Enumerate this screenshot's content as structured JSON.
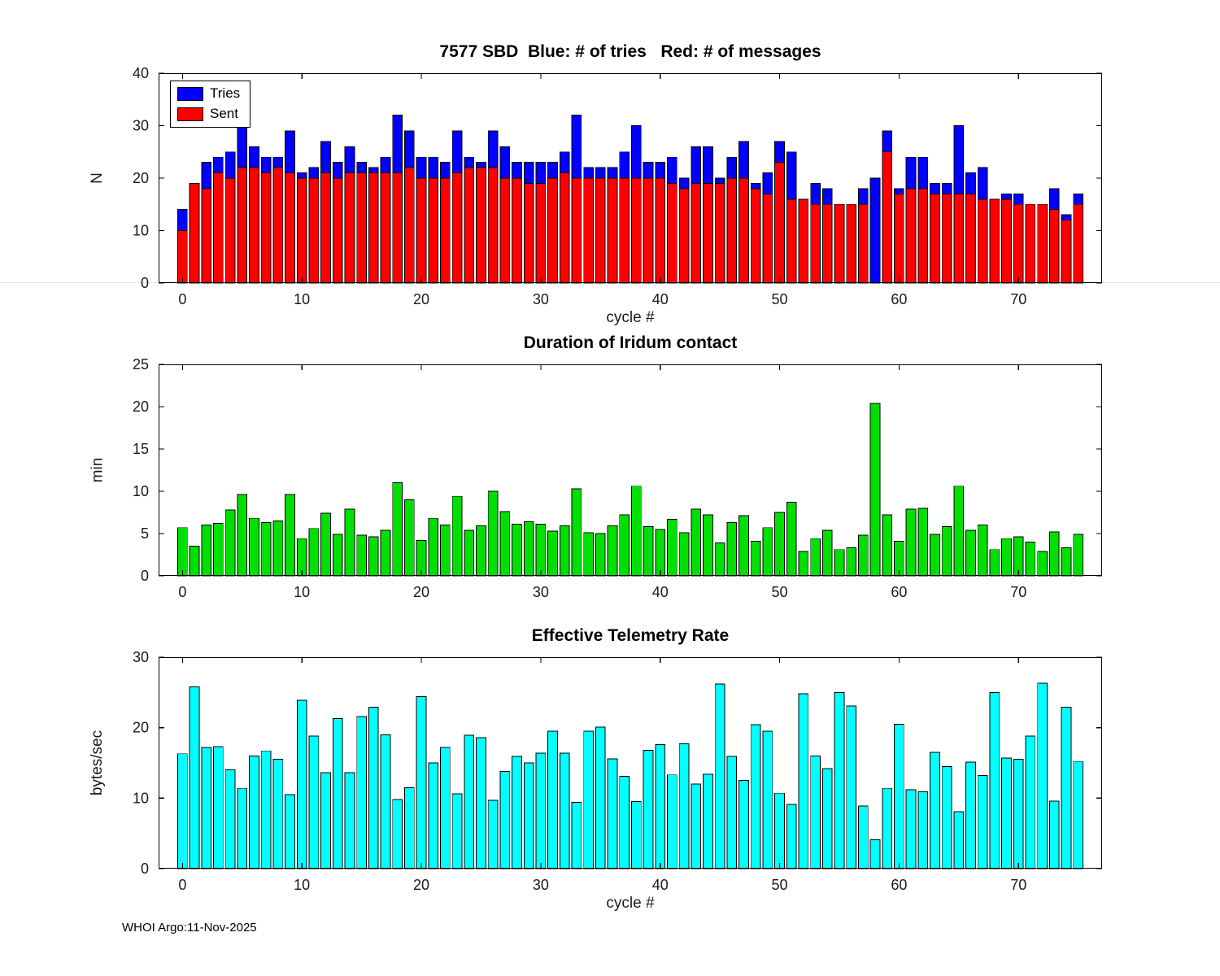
{
  "footer": "WHOI Argo:11-Nov-2025",
  "chart_data": [
    {
      "type": "bar",
      "title": "7577 SBD  Blue: # of tries   Red: # of messages",
      "xlabel": "cycle #",
      "ylabel": "N",
      "xlim": [
        -2,
        77
      ],
      "ylim": [
        0,
        40
      ],
      "xticks": [
        0,
        10,
        20,
        30,
        40,
        50,
        60,
        70
      ],
      "yticks": [
        0,
        10,
        20,
        30,
        40
      ],
      "grid": false,
      "legend_position": "top-left",
      "legend": [
        {
          "label": "Tries",
          "color": "#0000ff"
        },
        {
          "label": "Sent",
          "color": "#ff0000"
        }
      ],
      "series": [
        {
          "name": "Tries",
          "color": "#0000ff",
          "values": [
            14,
            19,
            23,
            24,
            25,
            31,
            26,
            24,
            24,
            29,
            21,
            22,
            27,
            23,
            26,
            23,
            22,
            24,
            32,
            29,
            24,
            24,
            23,
            29,
            24,
            23,
            29,
            26,
            23,
            23,
            23,
            23,
            25,
            32,
            22,
            22,
            22,
            25,
            30,
            23,
            23,
            24,
            20,
            26,
            26,
            20,
            24,
            27,
            19,
            21,
            27,
            25,
            16,
            19,
            18,
            15,
            15,
            18,
            20,
            29,
            18,
            24,
            24,
            19,
            19,
            30,
            21,
            22,
            16,
            17,
            17,
            15,
            15,
            18,
            13,
            17
          ]
        },
        {
          "name": "Sent",
          "color": "#ff0000",
          "values": [
            10,
            19,
            18,
            21,
            20,
            22,
            22,
            21,
            22,
            21,
            20,
            20,
            21,
            20,
            21,
            21,
            21,
            21,
            21,
            22,
            20,
            20,
            20,
            21,
            22,
            22,
            22,
            20,
            20,
            19,
            19,
            20,
            21,
            20,
            20,
            20,
            20,
            20,
            20,
            20,
            20,
            19,
            18,
            19,
            19,
            19,
            20,
            20,
            18,
            17,
            23,
            16,
            16,
            15,
            15,
            15,
            15,
            15,
            0,
            25,
            17,
            18,
            18,
            17,
            17,
            17,
            17,
            16,
            16,
            16,
            15,
            15,
            15,
            14,
            12,
            15
          ]
        }
      ]
    },
    {
      "type": "bar",
      "title": "Duration of Iridum contact",
      "xlabel": "",
      "ylabel": "min",
      "xlim": [
        -2,
        77
      ],
      "ylim": [
        0,
        25
      ],
      "xticks": [
        0,
        10,
        20,
        30,
        40,
        50,
        60,
        70
      ],
      "yticks": [
        0,
        5,
        10,
        15,
        20,
        25
      ],
      "grid": false,
      "series": [
        {
          "name": "Duration",
          "color": "#00e000",
          "values": [
            5.7,
            3.5,
            6.0,
            6.2,
            7.8,
            9.6,
            6.8,
            6.3,
            6.5,
            9.6,
            4.4,
            5.6,
            7.4,
            4.9,
            7.9,
            4.8,
            4.6,
            5.4,
            11.0,
            9.0,
            4.2,
            6.8,
            6.0,
            9.4,
            5.4,
            5.9,
            10.0,
            7.6,
            6.1,
            6.4,
            6.1,
            5.3,
            5.9,
            10.3,
            5.1,
            5.0,
            5.9,
            7.2,
            10.6,
            5.8,
            5.5,
            6.7,
            5.1,
            7.9,
            7.2,
            3.9,
            6.3,
            7.1,
            4.1,
            5.7,
            7.5,
            8.7,
            2.9,
            4.4,
            5.4,
            3.1,
            3.3,
            4.8,
            20.4,
            7.2,
            4.1,
            7.9,
            8.0,
            4.9,
            5.8,
            10.6,
            5.4,
            6.0,
            3.1,
            4.4,
            4.6,
            4.0,
            2.9,
            5.2,
            3.3,
            4.9
          ]
        }
      ]
    },
    {
      "type": "bar",
      "title": "Effective Telemetry Rate",
      "xlabel": "cycle #",
      "ylabel": "bytes/sec",
      "xlim": [
        -2,
        77
      ],
      "ylim": [
        0,
        30
      ],
      "xticks": [
        0,
        10,
        20,
        30,
        40,
        50,
        60,
        70
      ],
      "yticks": [
        0,
        10,
        20,
        30
      ],
      "grid": false,
      "series": [
        {
          "name": "Rate",
          "color": "#00ffff",
          "values": [
            16.3,
            25.8,
            17.2,
            17.3,
            14.0,
            11.4,
            16.0,
            16.7,
            15.5,
            10.5,
            23.9,
            18.8,
            13.6,
            21.3,
            13.6,
            21.6,
            22.9,
            19.0,
            9.8,
            11.5,
            24.4,
            15.0,
            17.2,
            10.6,
            18.9,
            18.6,
            9.7,
            13.8,
            15.9,
            15.0,
            16.4,
            19.5,
            16.4,
            9.4,
            19.5,
            20.1,
            15.6,
            13.1,
            9.5,
            16.8,
            17.6,
            13.3,
            17.7,
            12.0,
            13.4,
            26.2,
            15.9,
            12.5,
            20.4,
            19.5,
            10.7,
            9.1,
            24.8,
            16.0,
            14.2,
            25.0,
            23.1,
            8.9,
            4.1,
            11.4,
            20.5,
            11.2,
            10.9,
            16.5,
            14.5,
            8.1,
            15.1,
            13.2,
            25.0,
            15.7,
            15.5,
            18.8,
            26.3,
            9.6,
            22.9,
            15.2
          ]
        }
      ]
    }
  ]
}
